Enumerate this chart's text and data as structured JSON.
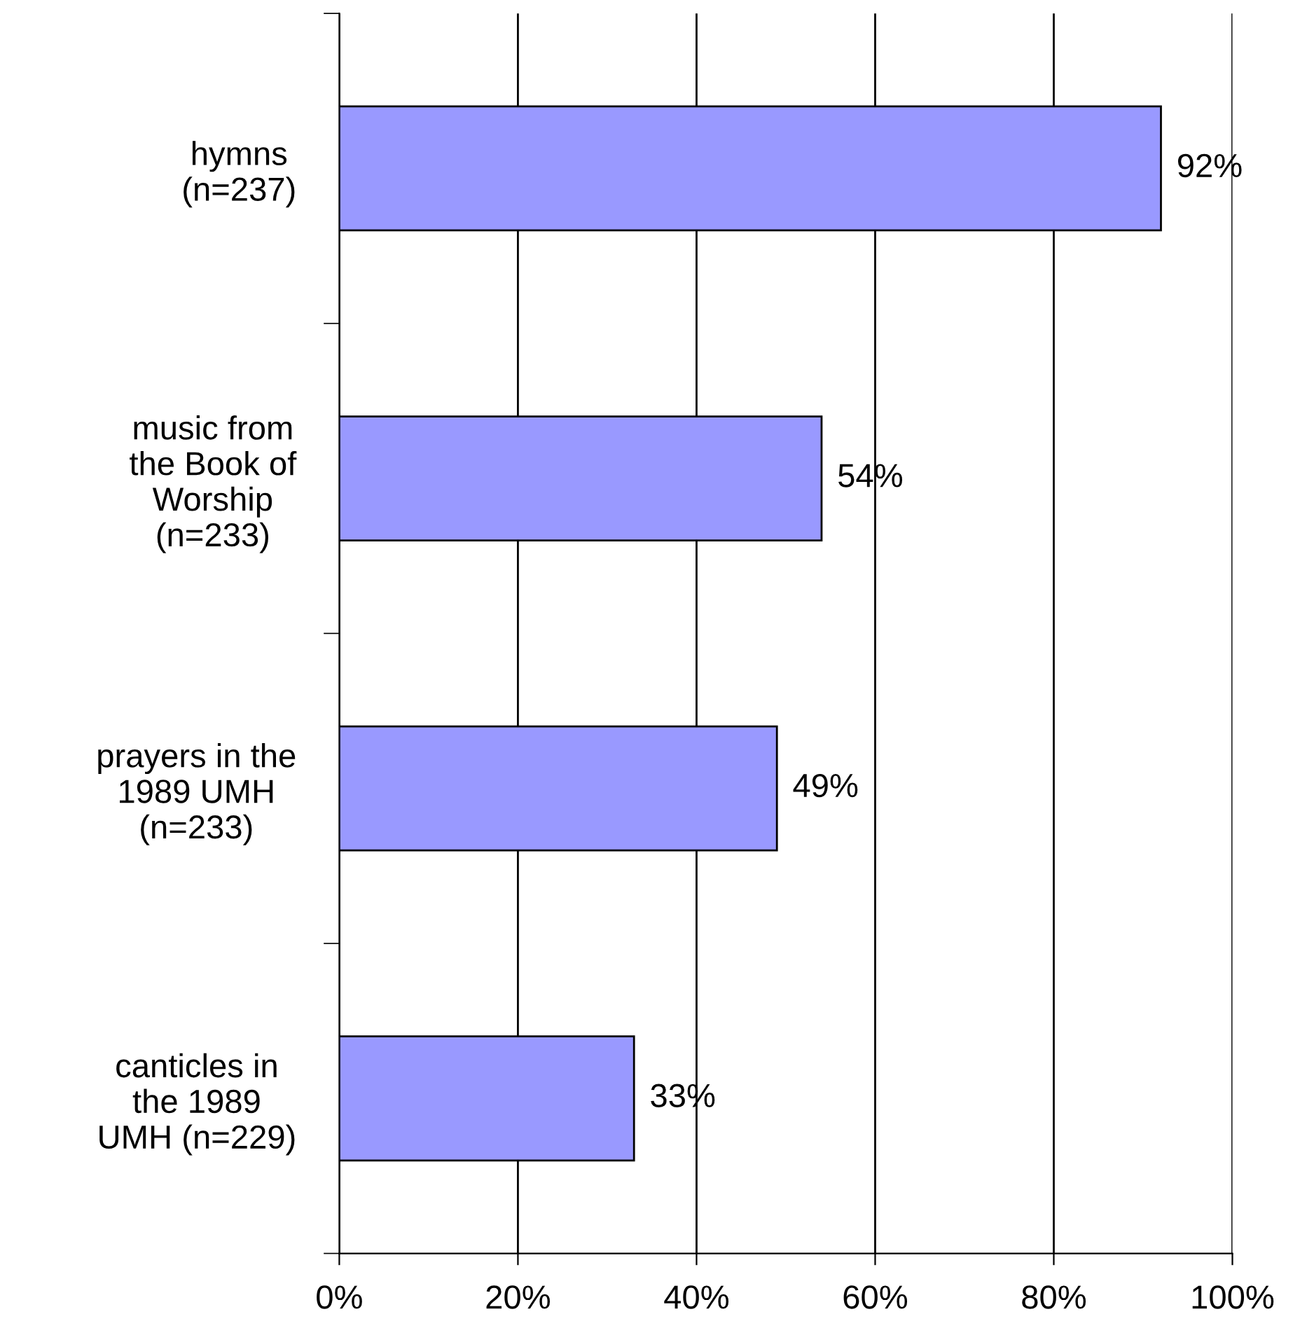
{
  "chart_data": {
    "type": "bar",
    "orientation": "horizontal",
    "categories": [
      "hymns\n(n=237)",
      "music from\nthe Book of\nWorship\n(n=233)",
      "prayers in the\n1989 UMH\n(n=233)",
      "canticles in\nthe 1989\nUMH (n=229)"
    ],
    "values": [
      92,
      54,
      49,
      33
    ],
    "value_labels": [
      "92%",
      "54%",
      "49%",
      "33%"
    ],
    "color": "#9999ff",
    "xlim": [
      0,
      100
    ],
    "xticks": [
      {
        "value": 0,
        "label": "0%"
      },
      {
        "value": 20,
        "label": "20%"
      },
      {
        "value": 40,
        "label": "40%"
      },
      {
        "value": 60,
        "label": "60%"
      },
      {
        "value": 80,
        "label": "80%"
      },
      {
        "value": 100,
        "label": "100%"
      }
    ],
    "grid": "x"
  }
}
